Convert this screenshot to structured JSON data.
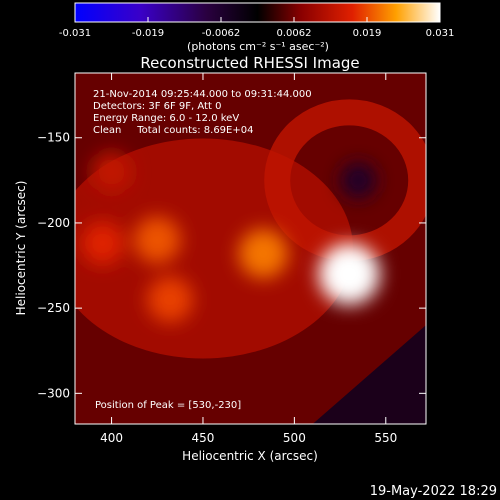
{
  "colorbar": {
    "ticks": [
      "-0.031",
      "-0.019",
      "-0.0062",
      "0.0062",
      "0.019",
      "0.031"
    ],
    "units_label": "(photons cm⁻² s⁻¹ asec⁻²)",
    "min": -0.031,
    "max": 0.031
  },
  "chart_data": {
    "type": "heatmap",
    "title": "Reconstructed RHESSI Image",
    "xlabel": "Heliocentric X (arcsec)",
    "ylabel": "Heliocentric Y (arcsec)",
    "xlim": [
      380,
      572
    ],
    "ylim": [
      -318,
      -112
    ],
    "xticks": [
      400,
      450,
      500,
      550
    ],
    "yticks": [
      -150,
      -200,
      -250,
      -300
    ],
    "xtick_labels": [
      "400",
      "450",
      "500",
      "550"
    ],
    "ytick_labels": [
      "−150",
      "−200",
      "−250",
      "−300"
    ],
    "annotations": [
      "21-Nov-2014 09:25:44.000 to 09:31:44.000",
      "Detectors: 3F 6F 9F, Att 0",
      "Energy Range: 6.0 - 12.0 keV",
      "Clean     Total counts: 8.69E+04"
    ],
    "peak_label": "Position of Peak = [530,-230]",
    "peak": {
      "x": 530,
      "y": -230,
      "value": 0.031
    },
    "sources": [
      {
        "x": 530,
        "y": -230,
        "value": 0.031
      },
      {
        "x": 483,
        "y": -218,
        "value": 0.021
      },
      {
        "x": 425,
        "y": -210,
        "value": 0.019
      },
      {
        "x": 395,
        "y": -212,
        "value": 0.016
      },
      {
        "x": 432,
        "y": -245,
        "value": 0.018
      },
      {
        "x": 400,
        "y": -170,
        "value": 0.013
      },
      {
        "x": 535,
        "y": -175,
        "value": -0.006
      }
    ]
  },
  "footer": {
    "timestamp": "19-May-2022 18:29"
  }
}
